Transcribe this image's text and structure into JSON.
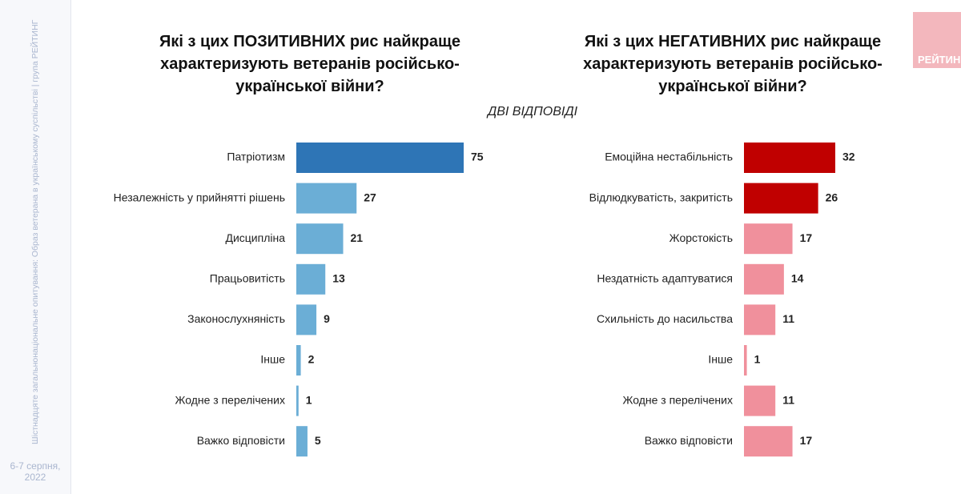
{
  "slide": {
    "sidebar_text": "Шістнадцяте загальнонаціональне опитування: Образ ветерана в українському суспільстві | група РЕЙТИНГ",
    "date": "6-7 серпня, 2022",
    "logo": "РЕЙТИНГ",
    "note": "ДВІ ВІДПОВІДІ"
  },
  "chart_data": [
    {
      "type": "hbar",
      "title": "Які з цих ПОЗИТИВНИХ рис найкраще характеризують ветеранів російсько-української війни?",
      "categories": [
        "Патріотизм",
        "Незалежність у прийнятті рішень",
        "Дисципліна",
        "Працьовитість",
        "Законослухняність",
        "Інше",
        "Жодне з перелічених",
        "Важко відповісти"
      ],
      "values": [
        75,
        27,
        21,
        13,
        9,
        2,
        1,
        5
      ],
      "colors": [
        "#2e75b6",
        "#6baed6",
        "#6baed6",
        "#6baed6",
        "#6baed6",
        "#6baed6",
        "#6baed6",
        "#6baed6"
      ]
    },
    {
      "type": "hbar",
      "title": "Які з цих НЕГАТИВНИХ  рис найкраще характеризують ветеранів російсько-української війни?",
      "categories": [
        "Емоційна нестабільність",
        "Відлюдкуватість, закритість",
        "Жорстокість",
        "Нездатність адаптуватися",
        "Схильність до насильства",
        "Інше",
        "Жодне з перелічених",
        "Важко відповісти"
      ],
      "values": [
        32,
        26,
        17,
        14,
        11,
        1,
        11,
        17
      ],
      "colors": [
        "#c00000",
        "#c00000",
        "#f0909c",
        "#f0909c",
        "#f0909c",
        "#f0909c",
        "#f0909c",
        "#f0909c"
      ]
    }
  ]
}
